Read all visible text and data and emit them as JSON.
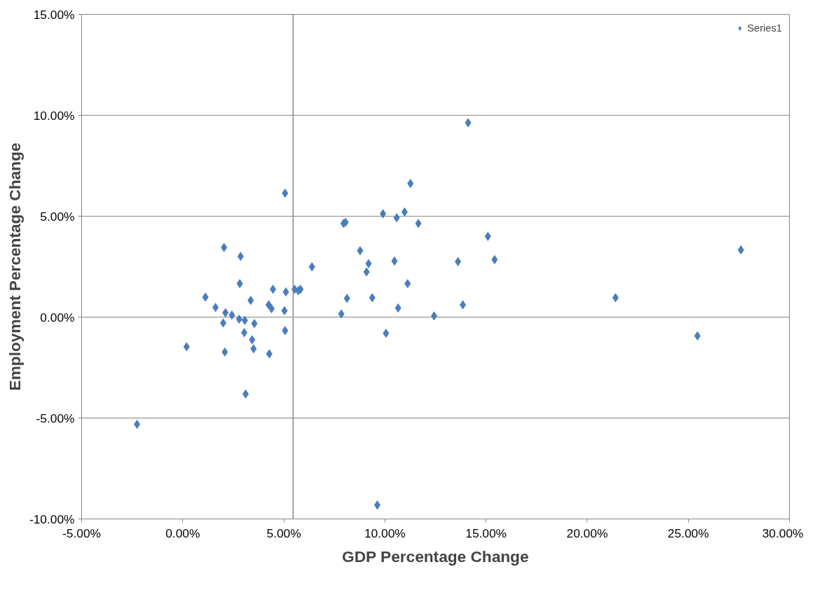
{
  "chart_data": {
    "type": "scatter",
    "xlabel": "GDP Percentage Change",
    "ylabel": "Employment Percentage Change",
    "xlim": [
      -5,
      30
    ],
    "ylim": [
      -10,
      15
    ],
    "xticks": [
      {
        "value": -5,
        "label": "-5.00%"
      },
      {
        "value": 0,
        "label": "0.00%"
      },
      {
        "value": 5,
        "label": "5.00%"
      },
      {
        "value": 10,
        "label": "10.00%"
      },
      {
        "value": 15,
        "label": "15.00%"
      },
      {
        "value": 20,
        "label": "20.00%"
      },
      {
        "value": 25,
        "label": "25.00%"
      },
      {
        "value": 30,
        "label": "30.00%"
      }
    ],
    "yticks": [
      {
        "value": -10,
        "label": "-10.00%"
      },
      {
        "value": -5,
        "label": "-5.00%"
      },
      {
        "value": 0,
        "label": "0.00%"
      },
      {
        "value": 5,
        "label": "5.00%"
      },
      {
        "value": 10,
        "label": "10.00%"
      },
      {
        "value": 15,
        "label": "15.00%"
      }
    ],
    "grid": "y",
    "legend": "top right",
    "marker": "diamond",
    "ref_lines": [
      {
        "axis": "x",
        "value": 5.46,
        "color": "#868686"
      }
    ],
    "series": [
      {
        "name": "Series1",
        "color": "#4a7ebb",
        "x": [
          -2.26,
          0.19,
          1.12,
          1.62,
          2.04,
          2.11,
          2.0,
          2.08,
          2.43,
          2.86,
          2.82,
          2.79,
          3.07,
          3.04,
          3.11,
          3.36,
          3.43,
          3.5,
          3.54,
          4.25,
          4.39,
          4.28,
          4.46,
          5.03,
          5.06,
          5.1,
          5.06,
          5.53,
          5.71,
          5.82,
          6.39,
          11.26,
          9.9,
          10.97,
          10.58,
          7.95,
          8.05,
          11.65,
          15.09,
          8.77,
          9.19,
          9.09,
          10.47,
          13.61,
          15.42,
          11.12,
          8.12,
          9.37,
          10.65,
          7.84,
          12.43,
          13.85,
          14.11,
          21.4,
          27.6,
          25.45,
          10.05,
          9.62
        ],
        "values": [
          -5.31,
          -1.47,
          0.99,
          0.48,
          3.45,
          0.22,
          -0.29,
          -1.73,
          0.1,
          3.01,
          1.66,
          -0.1,
          -0.16,
          -0.77,
          -3.81,
          0.83,
          -1.12,
          -1.57,
          -0.32,
          0.61,
          0.42,
          -1.82,
          1.38,
          0.32,
          -0.67,
          1.25,
          6.14,
          1.38,
          1.31,
          1.38,
          2.49,
          6.62,
          5.12,
          5.21,
          4.92,
          4.64,
          4.7,
          4.64,
          4.0,
          3.29,
          2.65,
          2.24,
          2.78,
          2.75,
          2.85,
          1.66,
          0.93,
          0.96,
          0.45,
          0.16,
          0.06,
          0.61,
          9.63,
          0.96,
          3.33,
          -0.93,
          -0.8,
          -9.31
        ]
      }
    ]
  }
}
